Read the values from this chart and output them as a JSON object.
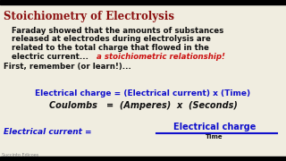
{
  "bg_color": "#f0ede0",
  "title": "Stoichiometry of Electrolysis",
  "title_color": "#8B1010",
  "body_color": "#111111",
  "blue_color": "#1010cc",
  "red_italic_color": "#cc1111",
  "dark_color": "#111111",
  "line1": "   Faraday showed that the amounts of substances",
  "line2": "   released at electrodes during electrolysis are",
  "line3": "   related to the total charge that flowed in the",
  "line4_black": "   electric current...",
  "line4_red": "a stoichiometric relationship!",
  "line5": "First, remember (or learn!)...",
  "eq1_blue": "Electrical charge = (Electrical current) x (Time)",
  "eq2_italic": "Coulombs   =  (Amperes)  x  (Seconds)",
  "eq3_left": "Electrical current = ",
  "eq3_numerator": "Electrical charge",
  "eq3_denominator": "Time",
  "watermark": "Succinto Edicoes"
}
